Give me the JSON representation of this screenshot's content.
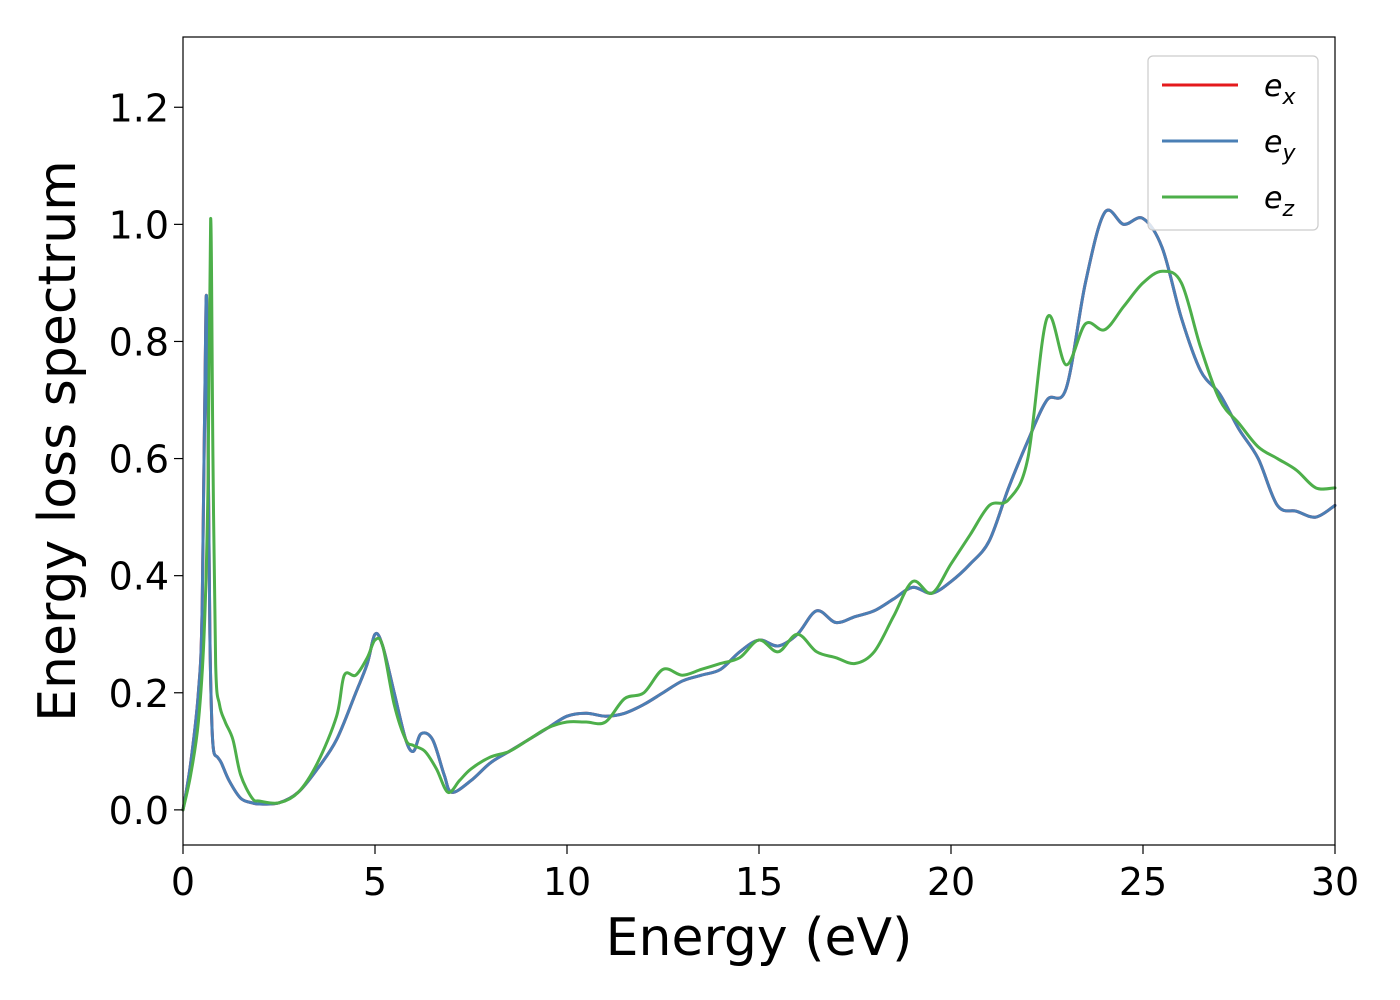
{
  "chart_data": {
    "type": "line",
    "title": "",
    "xlabel": "Energy (eV)",
    "ylabel": "Energy loss spectrum",
    "xlim": [
      0,
      30
    ],
    "ylim": [
      -0.06,
      1.32
    ],
    "xticks": [
      0,
      5,
      10,
      15,
      20,
      25,
      30
    ],
    "yticks": [
      0.0,
      0.2,
      0.4,
      0.6,
      0.8,
      1.0,
      1.2
    ],
    "grid": false,
    "legend_position": "top-right",
    "series": [
      {
        "name": "e",
        "subscript": "x",
        "color": "#e41a1c",
        "x": [
          0,
          0.2,
          0.4,
          0.5,
          0.6,
          0.65,
          0.7,
          0.75,
          0.8,
          0.9,
          1.0,
          1.2,
          1.5,
          1.8,
          2.0,
          2.5,
          3.0,
          3.5,
          4.0,
          4.5,
          4.8,
          5.0,
          5.2,
          5.5,
          5.8,
          6.0,
          6.2,
          6.5,
          6.8,
          7.0,
          7.5,
          8.0,
          8.5,
          9.0,
          9.5,
          10.0,
          10.5,
          11.0,
          11.5,
          12.0,
          12.5,
          13.0,
          13.5,
          14.0,
          14.5,
          15.0,
          15.5,
          16.0,
          16.5,
          17.0,
          17.5,
          18.0,
          18.5,
          19.0,
          19.5,
          20.0,
          20.5,
          21.0,
          21.5,
          22.0,
          22.5,
          23.0,
          23.5,
          24.0,
          24.5,
          25.0,
          25.5,
          26.0,
          26.5,
          27.0,
          27.5,
          28.0,
          28.5,
          29.0,
          29.5,
          30.0
        ],
        "y": [
          0.0,
          0.08,
          0.2,
          0.35,
          0.87,
          0.65,
          0.3,
          0.15,
          0.1,
          0.09,
          0.08,
          0.05,
          0.02,
          0.012,
          0.01,
          0.012,
          0.03,
          0.07,
          0.12,
          0.2,
          0.25,
          0.3,
          0.28,
          0.2,
          0.12,
          0.1,
          0.13,
          0.12,
          0.06,
          0.03,
          0.05,
          0.08,
          0.1,
          0.12,
          0.14,
          0.16,
          0.165,
          0.16,
          0.165,
          0.18,
          0.2,
          0.22,
          0.23,
          0.24,
          0.27,
          0.29,
          0.28,
          0.3,
          0.34,
          0.32,
          0.33,
          0.34,
          0.36,
          0.38,
          0.37,
          0.39,
          0.42,
          0.46,
          0.55,
          0.63,
          0.7,
          0.72,
          0.9,
          1.02,
          1.0,
          1.01,
          0.96,
          0.84,
          0.75,
          0.71,
          0.65,
          0.6,
          0.52,
          0.51,
          0.5,
          0.52
        ]
      },
      {
        "name": "e",
        "subscript": "y",
        "color": "#4a7fb5",
        "x": [
          0,
          0.2,
          0.4,
          0.5,
          0.6,
          0.65,
          0.7,
          0.75,
          0.8,
          0.9,
          1.0,
          1.2,
          1.5,
          1.8,
          2.0,
          2.5,
          3.0,
          3.5,
          4.0,
          4.5,
          4.8,
          5.0,
          5.2,
          5.5,
          5.8,
          6.0,
          6.2,
          6.5,
          6.8,
          7.0,
          7.5,
          8.0,
          8.5,
          9.0,
          9.5,
          10.0,
          10.5,
          11.0,
          11.5,
          12.0,
          12.5,
          13.0,
          13.5,
          14.0,
          14.5,
          15.0,
          15.5,
          16.0,
          16.5,
          17.0,
          17.5,
          18.0,
          18.5,
          19.0,
          19.5,
          20.0,
          20.5,
          21.0,
          21.5,
          22.0,
          22.5,
          23.0,
          23.5,
          24.0,
          24.5,
          25.0,
          25.5,
          26.0,
          26.5,
          27.0,
          27.5,
          28.0,
          28.5,
          29.0,
          29.5,
          30.0
        ],
        "y": [
          0.0,
          0.08,
          0.2,
          0.35,
          0.87,
          0.65,
          0.3,
          0.15,
          0.1,
          0.09,
          0.08,
          0.05,
          0.02,
          0.012,
          0.01,
          0.012,
          0.03,
          0.07,
          0.12,
          0.2,
          0.25,
          0.3,
          0.28,
          0.2,
          0.12,
          0.1,
          0.13,
          0.12,
          0.06,
          0.03,
          0.05,
          0.08,
          0.1,
          0.12,
          0.14,
          0.16,
          0.165,
          0.16,
          0.165,
          0.18,
          0.2,
          0.22,
          0.23,
          0.24,
          0.27,
          0.29,
          0.28,
          0.3,
          0.34,
          0.32,
          0.33,
          0.34,
          0.36,
          0.38,
          0.37,
          0.39,
          0.42,
          0.46,
          0.55,
          0.63,
          0.7,
          0.72,
          0.9,
          1.02,
          1.0,
          1.01,
          0.96,
          0.84,
          0.75,
          0.71,
          0.65,
          0.6,
          0.52,
          0.51,
          0.5,
          0.52
        ]
      },
      {
        "name": "e",
        "subscript": "z",
        "color": "#4daf4a",
        "x": [
          0,
          0.2,
          0.4,
          0.55,
          0.65,
          0.72,
          0.78,
          0.85,
          0.95,
          1.1,
          1.3,
          1.5,
          1.8,
          2.0,
          2.5,
          3.0,
          3.5,
          4.0,
          4.2,
          4.5,
          4.8,
          5.0,
          5.2,
          5.5,
          5.8,
          6.0,
          6.3,
          6.6,
          6.9,
          7.2,
          7.5,
          8.0,
          8.5,
          9.0,
          9.5,
          10.0,
          10.5,
          11.0,
          11.5,
          12.0,
          12.5,
          13.0,
          13.5,
          14.0,
          14.5,
          15.0,
          15.5,
          16.0,
          16.5,
          17.0,
          17.5,
          18.0,
          18.5,
          19.0,
          19.5,
          20.0,
          20.5,
          21.0,
          21.5,
          22.0,
          22.5,
          23.0,
          23.5,
          24.0,
          24.5,
          25.0,
          25.5,
          26.0,
          26.5,
          27.0,
          27.5,
          28.0,
          28.5,
          29.0,
          29.5,
          30.0
        ],
        "y": [
          0.0,
          0.06,
          0.15,
          0.3,
          0.55,
          1.01,
          0.6,
          0.25,
          0.18,
          0.15,
          0.12,
          0.06,
          0.02,
          0.015,
          0.012,
          0.03,
          0.08,
          0.16,
          0.23,
          0.23,
          0.26,
          0.29,
          0.28,
          0.18,
          0.12,
          0.11,
          0.1,
          0.07,
          0.03,
          0.05,
          0.07,
          0.09,
          0.1,
          0.12,
          0.14,
          0.15,
          0.15,
          0.15,
          0.19,
          0.2,
          0.24,
          0.23,
          0.24,
          0.25,
          0.26,
          0.29,
          0.27,
          0.3,
          0.27,
          0.26,
          0.25,
          0.27,
          0.33,
          0.39,
          0.37,
          0.42,
          0.47,
          0.52,
          0.53,
          0.6,
          0.84,
          0.76,
          0.83,
          0.82,
          0.86,
          0.9,
          0.92,
          0.9,
          0.79,
          0.7,
          0.66,
          0.62,
          0.6,
          0.58,
          0.55,
          0.55
        ]
      }
    ]
  }
}
